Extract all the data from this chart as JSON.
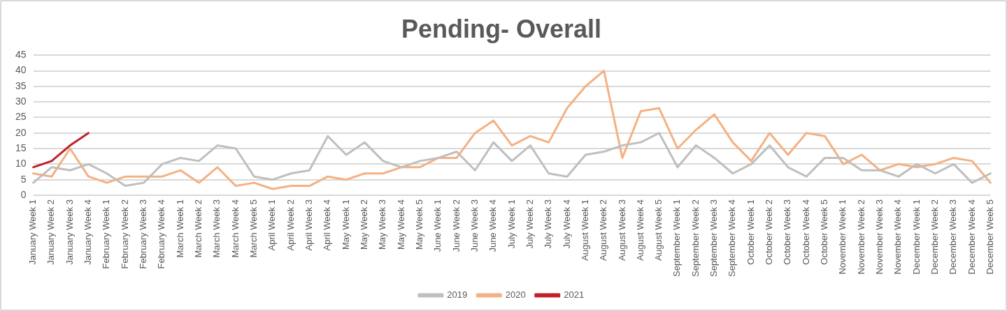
{
  "chart_data": {
    "type": "line",
    "title": "Pending- Overall",
    "categories": [
      "January Week 1",
      "January Week 2",
      "January Week 3",
      "January Week 4",
      "February Week 1",
      "February Week 2",
      "February Week 3",
      "February Week 4",
      "March Week 1",
      "March Week 2",
      "March Week 3",
      "March Week 4",
      "March Week 5",
      "April Week 1",
      "April Week 2",
      "April Week 3",
      "April Week 4",
      "May Week 1",
      "May Week 2",
      "May Week 3",
      "May Week 4",
      "May Week 5",
      "June Week 1",
      "June Week 2",
      "June Week 3",
      "June Week 4",
      "July Week 1",
      "July Week 2",
      "July Week 3",
      "July Week 4",
      "August Week 1",
      "August Week 2",
      "August Week 3",
      "August Week 4",
      "August Week 5",
      "September Week 1",
      "September Week 2",
      "September Week 3",
      "September Week 4",
      "October Week 1",
      "October Week 2",
      "October Week 3",
      "October Week 4",
      "October Week 5",
      "November Week 1",
      "November Week 2",
      "November Week 3",
      "November Week 4",
      "December Week 1",
      "December Week 2",
      "December Week 3",
      "December Week 4",
      "December Week 5"
    ],
    "series": [
      {
        "name": "2019",
        "color": "#bfbfbf",
        "values": [
          4,
          9,
          8,
          10,
          7,
          3,
          4,
          10,
          12,
          11,
          16,
          15,
          6,
          5,
          7,
          8,
          19,
          13,
          17,
          11,
          9,
          11,
          12,
          14,
          8,
          17,
          11,
          16,
          7,
          6,
          13,
          14,
          16,
          17,
          20,
          9,
          16,
          12,
          7,
          10,
          16,
          9,
          6,
          12,
          12,
          8,
          8,
          6,
          10,
          7,
          10,
          4,
          7
        ]
      },
      {
        "name": "2020",
        "color": "#f4b183",
        "values": [
          7,
          6,
          15,
          6,
          4,
          6,
          6,
          6,
          8,
          4,
          9,
          3,
          4,
          2,
          3,
          3,
          6,
          5,
          7,
          7,
          9,
          9,
          12,
          12,
          20,
          24,
          16,
          19,
          17,
          28,
          35,
          40,
          12,
          27,
          28,
          15,
          21,
          26,
          17,
          11,
          20,
          13,
          20,
          19,
          10,
          13,
          8,
          10,
          9,
          10,
          12,
          11,
          4
        ]
      },
      {
        "name": "2021",
        "color": "#c0202a",
        "values": [
          9,
          11,
          16,
          20,
          null,
          null,
          null,
          null,
          null,
          null,
          null,
          null,
          null,
          null,
          null,
          null,
          null,
          null,
          null,
          null,
          null,
          null,
          null,
          null,
          null,
          null,
          null,
          null,
          null,
          null,
          null,
          null,
          null,
          null,
          null,
          null,
          null,
          null,
          null,
          null,
          null,
          null,
          null,
          null,
          null,
          null,
          null,
          null,
          null,
          null,
          null,
          null,
          null
        ]
      }
    ],
    "ylim": [
      0,
      45
    ],
    "yticks": [
      0,
      5,
      10,
      15,
      20,
      25,
      30,
      35,
      40,
      45
    ],
    "grid": "y",
    "legend": "bottom",
    "marker": "none",
    "line_style": "solid"
  }
}
